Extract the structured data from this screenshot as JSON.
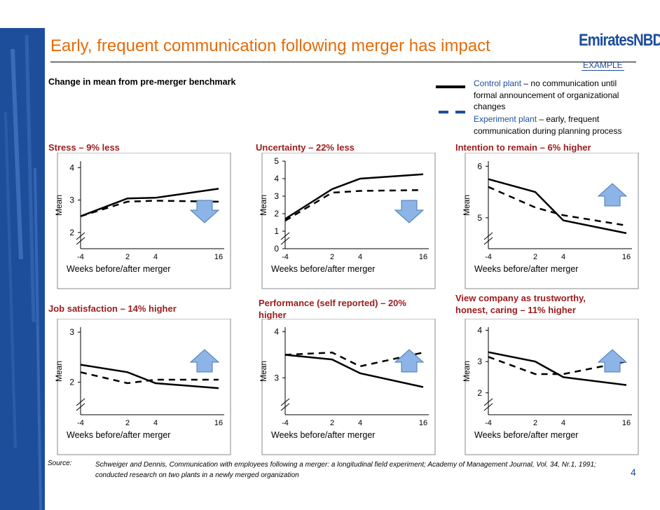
{
  "header": {
    "title": "Early, frequent communication following merger has impact",
    "logo_text": "EmiratesNBD",
    "tag": "EXAMPLE",
    "subtitle": "Change in mean from pre-merger benchmark"
  },
  "legend": {
    "control_name": "Control plant",
    "control_desc": " – no communication until formal announcement of organizational changes",
    "experiment_name": "Experiment plant",
    "experiment_desc": " – early, frequent communication during planning process"
  },
  "colors": {
    "title": "#e36c0a",
    "brand": "#1d4e9b",
    "chart_title": "#9b1b1b",
    "arrow": "#8cb4e6"
  },
  "chart_data": [
    {
      "id": "stress",
      "type": "line",
      "title": "Stress –  9% less",
      "xlabel": "Weeks before/after merger",
      "ylabel": "Mean",
      "x_ticks": [
        "-4",
        "2",
        "4",
        "16"
      ],
      "y_ticks": [
        "2",
        "3",
        "4"
      ],
      "ylim": [
        1.5,
        4.2
      ],
      "arrow": "down",
      "series": [
        {
          "name": "Control plant",
          "style": "solid",
          "values": [
            2.5,
            3.05,
            3.07,
            3.35
          ]
        },
        {
          "name": "Experiment plant",
          "style": "dashed",
          "values": [
            2.5,
            2.95,
            2.98,
            2.95
          ]
        }
      ]
    },
    {
      "id": "uncertainty",
      "type": "line",
      "title": "Uncertainty –  22% less",
      "xlabel": "Weeks before/after merger",
      "ylabel": "Mean",
      "x_ticks": [
        "-4",
        "2",
        "4",
        "16"
      ],
      "y_ticks": [
        "0",
        "1",
        "2",
        "3",
        "4",
        "5"
      ],
      "ylim": [
        0,
        5
      ],
      "arrow": "down",
      "series": [
        {
          "name": "Control plant",
          "style": "solid",
          "values": [
            1.7,
            3.4,
            4.0,
            4.25
          ]
        },
        {
          "name": "Experiment plant",
          "style": "dashed",
          "values": [
            1.6,
            3.2,
            3.3,
            3.35
          ]
        }
      ]
    },
    {
      "id": "intention",
      "type": "line",
      "title": "Intention to remain –  6% higher",
      "xlabel": "Weeks before/after merger",
      "ylabel": "Mean",
      "x_ticks": [
        "-4",
        "2",
        "4",
        "16"
      ],
      "y_ticks": [
        "5",
        "6"
      ],
      "ylim": [
        4.4,
        6.1
      ],
      "arrow": "up",
      "series": [
        {
          "name": "Control plant",
          "style": "solid",
          "values": [
            5.75,
            5.5,
            4.95,
            4.7
          ]
        },
        {
          "name": "Experiment plant",
          "style": "dashed",
          "values": [
            5.6,
            5.2,
            5.05,
            4.85
          ]
        }
      ]
    },
    {
      "id": "job_satisfaction",
      "type": "line",
      "title": "Job satisfaction –  14% higher",
      "xlabel": "Weeks before/after merger",
      "ylabel": "Mean",
      "x_ticks": [
        "-4",
        "2",
        "4",
        "16"
      ],
      "y_ticks": [
        "2",
        "3"
      ],
      "ylim": [
        1.35,
        3.1
      ],
      "arrow": "up",
      "series": [
        {
          "name": "Control plant",
          "style": "solid",
          "values": [
            2.35,
            2.2,
            1.98,
            1.88
          ]
        },
        {
          "name": "Experiment plant",
          "style": "dashed",
          "values": [
            2.2,
            1.98,
            2.05,
            2.05
          ]
        }
      ]
    },
    {
      "id": "performance",
      "type": "line",
      "title": "Performance (self reported) – 20% higher",
      "xlabel": "Weeks before/after merger",
      "ylabel": "Mean",
      "x_ticks": [
        "-4",
        "2",
        "4",
        "16"
      ],
      "y_ticks": [
        "3",
        "4"
      ],
      "ylim": [
        2.2,
        4.1
      ],
      "arrow": "up",
      "series": [
        {
          "name": "Control plant",
          "style": "solid",
          "values": [
            3.5,
            3.4,
            3.1,
            2.8
          ]
        },
        {
          "name": "Experiment plant",
          "style": "dashed",
          "values": [
            3.5,
            3.55,
            3.25,
            3.55
          ]
        }
      ]
    },
    {
      "id": "trustworthy",
      "type": "line",
      "title": "View company as trustworthy, honest, caring –  11% higher",
      "xlabel": "Weeks before/after merger",
      "ylabel": "Mean",
      "x_ticks": [
        "-4",
        "2",
        "4",
        "16"
      ],
      "y_ticks": [
        "2",
        "3",
        "4"
      ],
      "ylim": [
        1.3,
        4.1
      ],
      "arrow": "up",
      "series": [
        {
          "name": "Control plant",
          "style": "solid",
          "values": [
            3.3,
            3.0,
            2.5,
            2.25
          ]
        },
        {
          "name": "Experiment plant",
          "style": "dashed",
          "values": [
            3.15,
            2.6,
            2.6,
            3.0
          ]
        }
      ]
    }
  ],
  "footer": {
    "source_label": "Source:",
    "source_text": "Schweiger and Dennis, Communication with employees following a merger: a longitudinal field experiment; Academy of Management Journal, Vol. 34, Nr.1, 1991; conducted research on two plants in a newly merged organization",
    "page_number": "4"
  }
}
